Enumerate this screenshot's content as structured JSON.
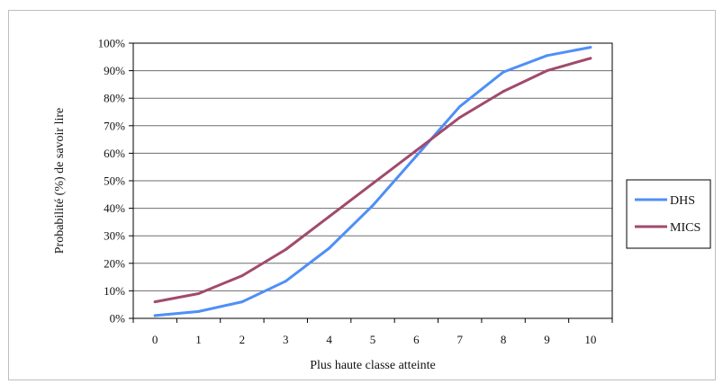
{
  "chart_data": {
    "type": "line",
    "title": "",
    "xlabel": "Plus haute classe atteinte",
    "ylabel": "Probabilité (%) de savoir lire",
    "x": [
      0,
      1,
      2,
      3,
      4,
      5,
      6,
      7,
      8,
      9,
      10
    ],
    "x_tick_labels": [
      "0",
      "1",
      "2",
      "3",
      "4",
      "5",
      "6",
      "7",
      "8",
      "9",
      "10"
    ],
    "ylim": [
      0,
      100
    ],
    "y_ticks": [
      0,
      10,
      20,
      30,
      40,
      50,
      60,
      70,
      80,
      90,
      100
    ],
    "y_tick_labels": [
      "0%",
      "10%",
      "20%",
      "30%",
      "40%",
      "50%",
      "60%",
      "70%",
      "80%",
      "90%",
      "100%"
    ],
    "grid": true,
    "legend_position": "right",
    "series": [
      {
        "name": "DHS",
        "color": "#4f8ff7",
        "values": [
          1,
          2.5,
          6,
          13.5,
          25.5,
          41,
          59,
          77,
          89.5,
          95.5,
          98.5
        ]
      },
      {
        "name": "MICS",
        "color": "#a14a6c",
        "values": [
          6,
          9,
          15.5,
          25,
          37,
          49,
          61,
          73,
          82.5,
          90,
          94.5
        ]
      }
    ]
  }
}
